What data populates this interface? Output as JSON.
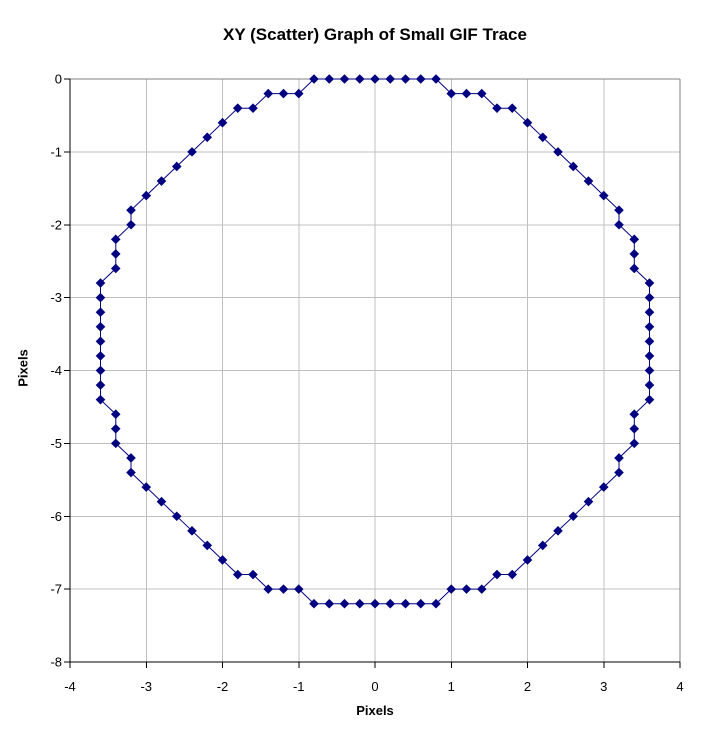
{
  "page": {
    "background": "#ffffff"
  },
  "chart_data": {
    "type": "scatter",
    "title": "XY (Scatter) Graph of Small GIF Trace",
    "xlabel": "Pixels",
    "ylabel": "Pixels",
    "xlim": [
      -4,
      4
    ],
    "ylim": [
      -8,
      0
    ],
    "x_ticks": [
      -4,
      -3,
      -2,
      -1,
      0,
      1,
      2,
      3,
      4
    ],
    "y_ticks": [
      0,
      -1,
      -2,
      -3,
      -4,
      -5,
      -6,
      -7,
      -8
    ],
    "grid": true,
    "legend": "none",
    "marker": "diamond",
    "marker_size_px": 9.6,
    "line_closed": true,
    "colors": {
      "series": "#000080",
      "gridline": "#c0c0c0",
      "plot_border": "#808080",
      "axis": "#000000",
      "text": "#000000"
    },
    "series": [
      {
        "points": [
          [
            0.0,
            0.0
          ],
          [
            0.2,
            0.0
          ],
          [
            0.4,
            0.0
          ],
          [
            0.6,
            0.0
          ],
          [
            0.8,
            0.0
          ],
          [
            1.0,
            -0.2
          ],
          [
            1.2,
            -0.2
          ],
          [
            1.4,
            -0.2
          ],
          [
            1.6,
            -0.4
          ],
          [
            1.8,
            -0.4
          ],
          [
            2.0,
            -0.6
          ],
          [
            2.2,
            -0.8
          ],
          [
            2.4,
            -1.0
          ],
          [
            2.6,
            -1.2
          ],
          [
            2.8,
            -1.4
          ],
          [
            3.0,
            -1.6
          ],
          [
            3.2,
            -1.8
          ],
          [
            3.2,
            -2.0
          ],
          [
            3.4,
            -2.2
          ],
          [
            3.4,
            -2.4
          ],
          [
            3.4,
            -2.6
          ],
          [
            3.6,
            -2.8
          ],
          [
            3.6,
            -3.0
          ],
          [
            3.6,
            -3.2
          ],
          [
            3.6,
            -3.4
          ],
          [
            3.6,
            -3.6
          ],
          [
            3.6,
            -3.8
          ],
          [
            3.6,
            -4.0
          ],
          [
            3.6,
            -4.2
          ],
          [
            3.6,
            -4.4
          ],
          [
            3.4,
            -4.6
          ],
          [
            3.4,
            -4.8
          ],
          [
            3.4,
            -5.0
          ],
          [
            3.2,
            -5.2
          ],
          [
            3.2,
            -5.4
          ],
          [
            3.0,
            -5.6
          ],
          [
            2.8,
            -5.8
          ],
          [
            2.6,
            -6.0
          ],
          [
            2.4,
            -6.2
          ],
          [
            2.2,
            -6.4
          ],
          [
            2.0,
            -6.6
          ],
          [
            1.8,
            -6.8
          ],
          [
            1.6,
            -6.8
          ],
          [
            1.4,
            -7.0
          ],
          [
            1.2,
            -7.0
          ],
          [
            1.0,
            -7.0
          ],
          [
            0.8,
            -7.2
          ],
          [
            0.6,
            -7.2
          ],
          [
            0.4,
            -7.2
          ],
          [
            0.2,
            -7.2
          ],
          [
            0.0,
            -7.2
          ],
          [
            -0.2,
            -7.2
          ],
          [
            -0.4,
            -7.2
          ],
          [
            -0.6,
            -7.2
          ],
          [
            -0.8,
            -7.2
          ],
          [
            -1.0,
            -7.0
          ],
          [
            -1.2,
            -7.0
          ],
          [
            -1.4,
            -7.0
          ],
          [
            -1.6,
            -6.8
          ],
          [
            -1.8,
            -6.8
          ],
          [
            -2.0,
            -6.6
          ],
          [
            -2.2,
            -6.4
          ],
          [
            -2.4,
            -6.2
          ],
          [
            -2.6,
            -6.0
          ],
          [
            -2.8,
            -5.8
          ],
          [
            -3.0,
            -5.6
          ],
          [
            -3.2,
            -5.4
          ],
          [
            -3.2,
            -5.2
          ],
          [
            -3.4,
            -5.0
          ],
          [
            -3.4,
            -4.8
          ],
          [
            -3.4,
            -4.6
          ],
          [
            -3.6,
            -4.4
          ],
          [
            -3.6,
            -4.2
          ],
          [
            -3.6,
            -4.0
          ],
          [
            -3.6,
            -3.8
          ],
          [
            -3.6,
            -3.6
          ],
          [
            -3.6,
            -3.4
          ],
          [
            -3.6,
            -3.2
          ],
          [
            -3.6,
            -3.0
          ],
          [
            -3.6,
            -2.8
          ],
          [
            -3.4,
            -2.6
          ],
          [
            -3.4,
            -2.4
          ],
          [
            -3.4,
            -2.2
          ],
          [
            -3.2,
            -2.0
          ],
          [
            -3.2,
            -1.8
          ],
          [
            -3.0,
            -1.6
          ],
          [
            -2.8,
            -1.4
          ],
          [
            -2.6,
            -1.2
          ],
          [
            -2.4,
            -1.0
          ],
          [
            -2.2,
            -0.8
          ],
          [
            -2.0,
            -0.6
          ],
          [
            -1.8,
            -0.4
          ],
          [
            -1.6,
            -0.4
          ],
          [
            -1.4,
            -0.2
          ],
          [
            -1.2,
            -0.2
          ],
          [
            -1.0,
            -0.2
          ],
          [
            -0.8,
            0.0
          ],
          [
            -0.6,
            0.0
          ],
          [
            -0.4,
            0.0
          ],
          [
            -0.2,
            0.0
          ]
        ]
      }
    ]
  }
}
